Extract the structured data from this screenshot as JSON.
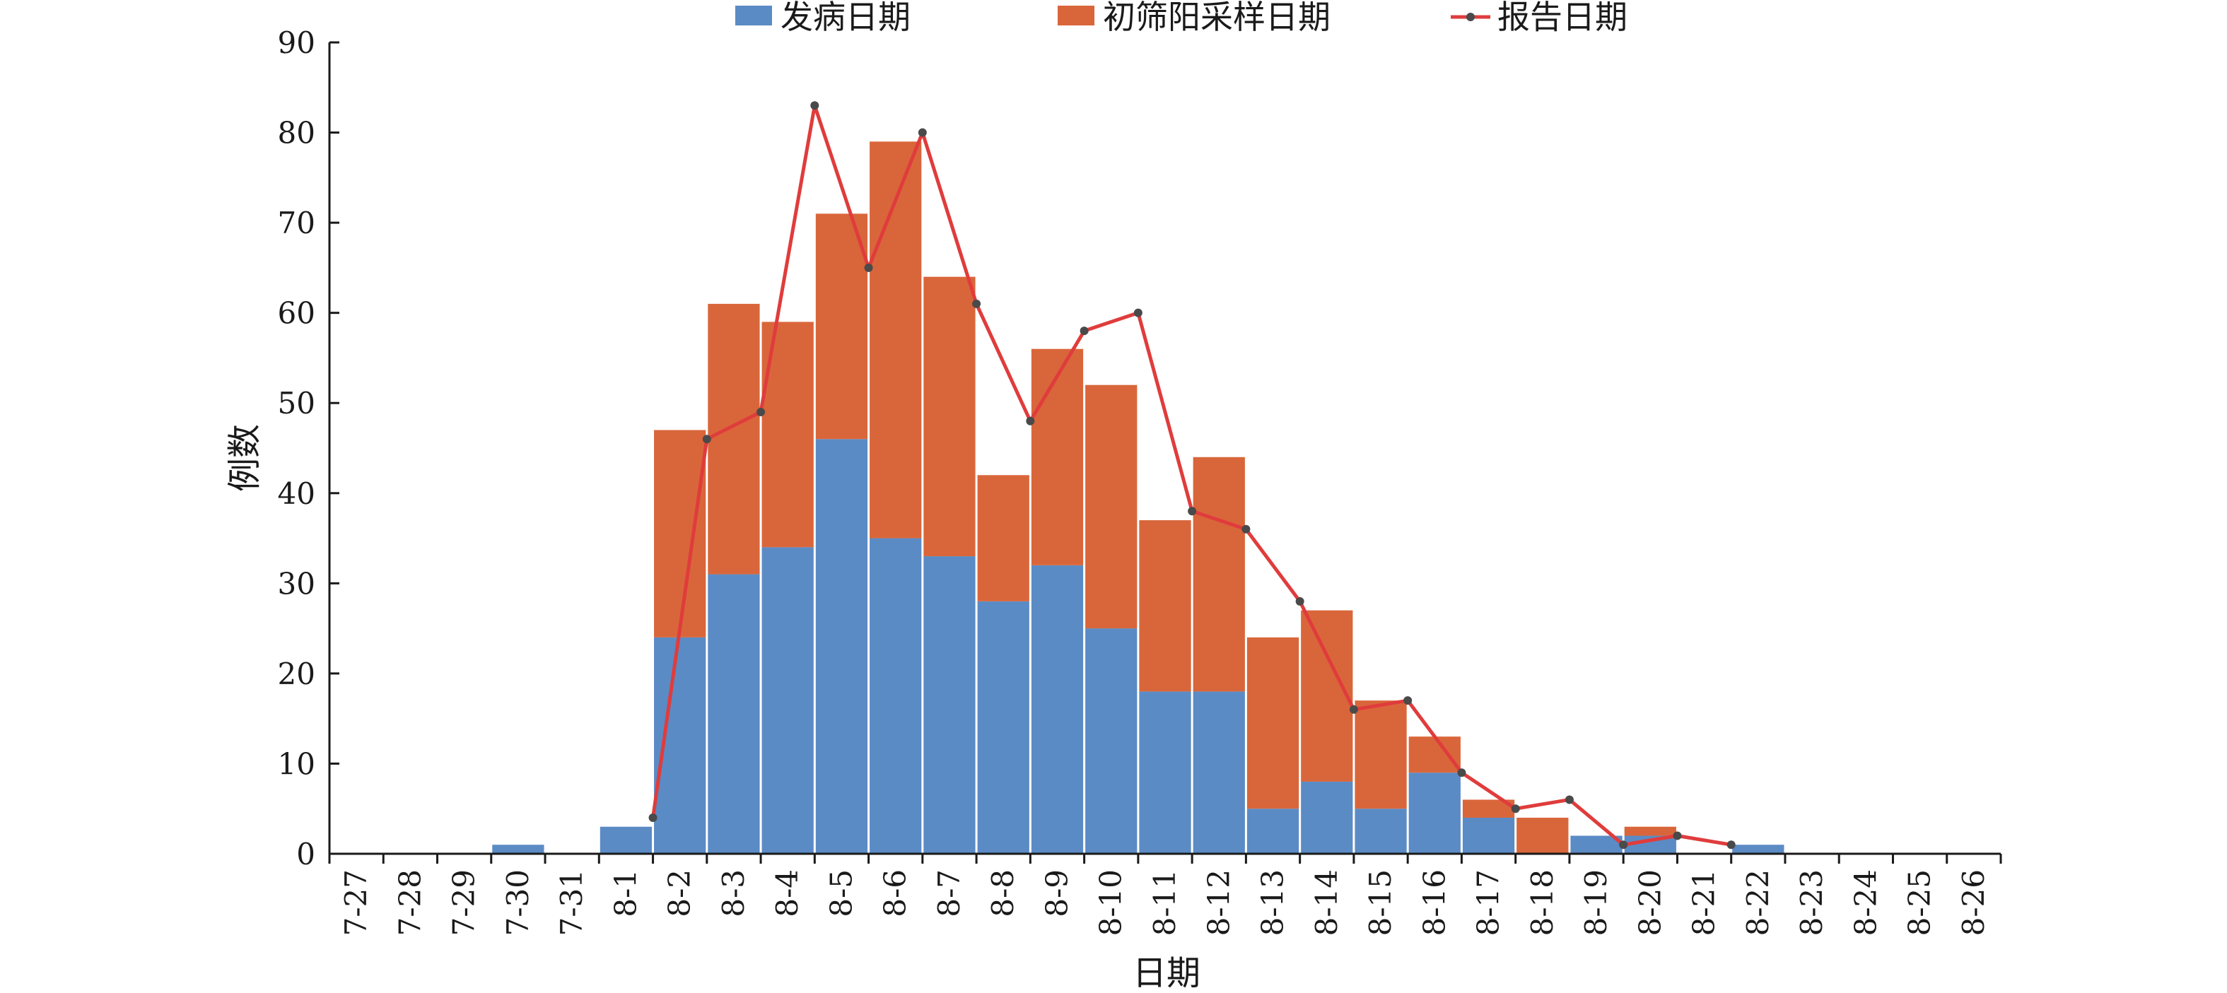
{
  "chart_data": {
    "type": "bar",
    "stacked": true,
    "title": "",
    "xlabel": "日期",
    "ylabel": "例数",
    "ylim": [
      0,
      90
    ],
    "yticks": [
      0,
      10,
      20,
      30,
      40,
      50,
      60,
      70,
      80,
      90
    ],
    "grid": false,
    "legend_position": "top",
    "categories": [
      "7-27",
      "7-28",
      "7-29",
      "7-30",
      "7-31",
      "8-1",
      "8-2",
      "8-3",
      "8-4",
      "8-5",
      "8-6",
      "8-7",
      "8-8",
      "8-9",
      "8-10",
      "8-11",
      "8-12",
      "8-13",
      "8-14",
      "8-15",
      "8-16",
      "8-17",
      "8-18",
      "8-19",
      "8-20",
      "8-21",
      "8-22",
      "8-23",
      "8-24",
      "8-25",
      "8-26"
    ],
    "series": [
      {
        "name": "发病日期",
        "kind": "bar",
        "color": "#5b8bc5",
        "values": [
          0,
          0,
          0,
          1,
          0,
          3,
          24,
          31,
          34,
          46,
          35,
          33,
          28,
          32,
          25,
          18,
          18,
          5,
          8,
          5,
          9,
          4,
          0,
          2,
          2,
          0,
          1,
          0,
          0,
          0,
          0
        ]
      },
      {
        "name": "初筛阳采样日期",
        "kind": "bar",
        "color": "#d9663a",
        "values": [
          0,
          0,
          0,
          0,
          0,
          0,
          23,
          30,
          25,
          25,
          44,
          31,
          14,
          24,
          27,
          19,
          26,
          19,
          19,
          12,
          4,
          2,
          4,
          0,
          1,
          0,
          0,
          0,
          0,
          0,
          0
        ]
      },
      {
        "name": "报告日期",
        "kind": "line",
        "color": "#e03c3c",
        "marker_color": "#4a4a4a",
        "values": [
          null,
          null,
          null,
          null,
          null,
          null,
          4,
          46,
          49,
          83,
          65,
          80,
          61,
          48,
          58,
          60,
          38,
          36,
          28,
          16,
          17,
          9,
          5,
          6,
          1,
          2,
          1,
          null,
          null,
          null,
          null
        ]
      }
    ]
  }
}
